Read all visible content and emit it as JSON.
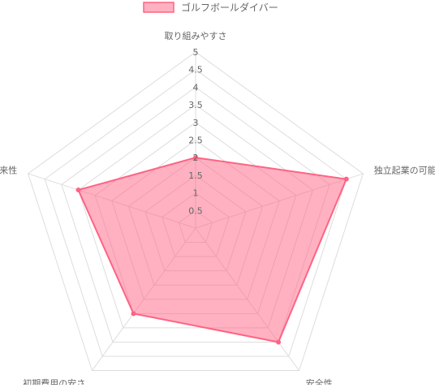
{
  "chart_data": {
    "type": "radar",
    "axes": [
      "取り組みやすさ",
      "独立起業の可能性",
      "安全性",
      "初期費用の安さ",
      "将来性"
    ],
    "series": [
      {
        "name": "ゴルフボールダイバー",
        "values": [
          2,
          4.5,
          4,
          3,
          3.5
        ]
      }
    ],
    "r_range": [
      0,
      5
    ],
    "tick_step": 0.5,
    "tick_labels": [
      "0.5",
      "1",
      "1.5",
      "2",
      "2.5",
      "3",
      "3.5",
      "4",
      "4.5",
      "5"
    ],
    "legend_position": "top",
    "grid": true,
    "colors": {
      "fill": "rgba(255,99,132,0.5)",
      "stroke": "#ff6384",
      "grid": "#dddddd",
      "text": "#666666"
    }
  }
}
